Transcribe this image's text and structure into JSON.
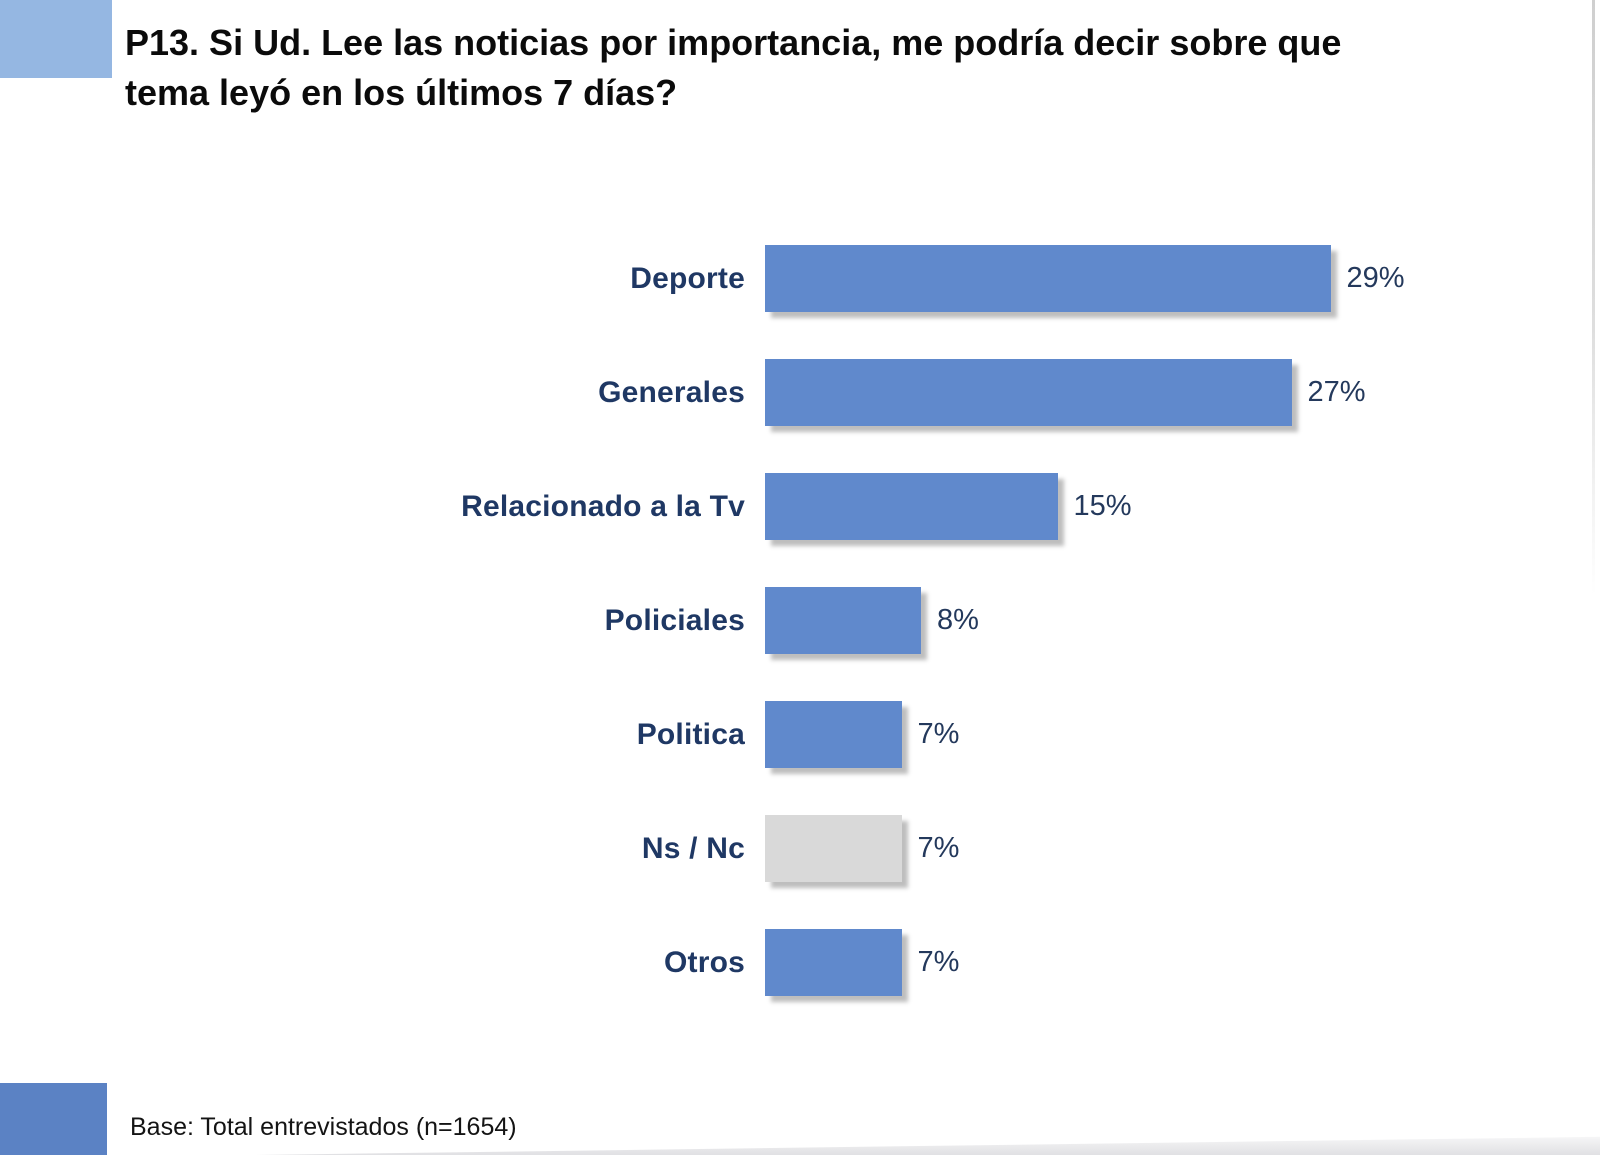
{
  "slide": {
    "title_line1": "P13. Si Ud. Lee las noticias por importancia, me podría decir sobre que",
    "title_line2": "tema leyó en los últimos 7 días?",
    "base_note": "Base: Total entrevistados (n=1654)"
  },
  "colors": {
    "bar_blue": "#6089CC",
    "bar_gray": "#D9D9D9",
    "accent_light_blue": "#95B7E2",
    "accent_medium_blue": "#5B82C4",
    "category_label_navy": "#1F3864",
    "value_label_navy": "#24395C",
    "logo_teal": "#63B5C8",
    "logo_gray": "#A9A6A2"
  },
  "chart_data": {
    "type": "bar",
    "orientation": "horizontal",
    "title": "P13. Si Ud. Lee las noticias por importancia, me podría decir sobre que tema leyó en los últimos 7 días?",
    "categories": [
      "Deporte",
      "Generales",
      "Relacionado a la Tv",
      "Policiales",
      "Politica",
      "Ns / Nc",
      "Otros"
    ],
    "values": [
      29,
      27,
      15,
      8,
      7,
      7,
      7
    ],
    "value_labels": [
      "29%",
      "27%",
      "15%",
      "8%",
      "7%",
      "7%",
      "7%"
    ],
    "bar_colors": [
      "#6089CC",
      "#6089CC",
      "#6089CC",
      "#6089CC",
      "#6089CC",
      "#D9D9D9",
      "#6089CC"
    ],
    "xlabel": "",
    "ylabel": "",
    "xlim": [
      0,
      30
    ],
    "grid": false,
    "legend": false,
    "data_labels": true,
    "base_note": "Base: Total entrevistados (n=1654)"
  }
}
